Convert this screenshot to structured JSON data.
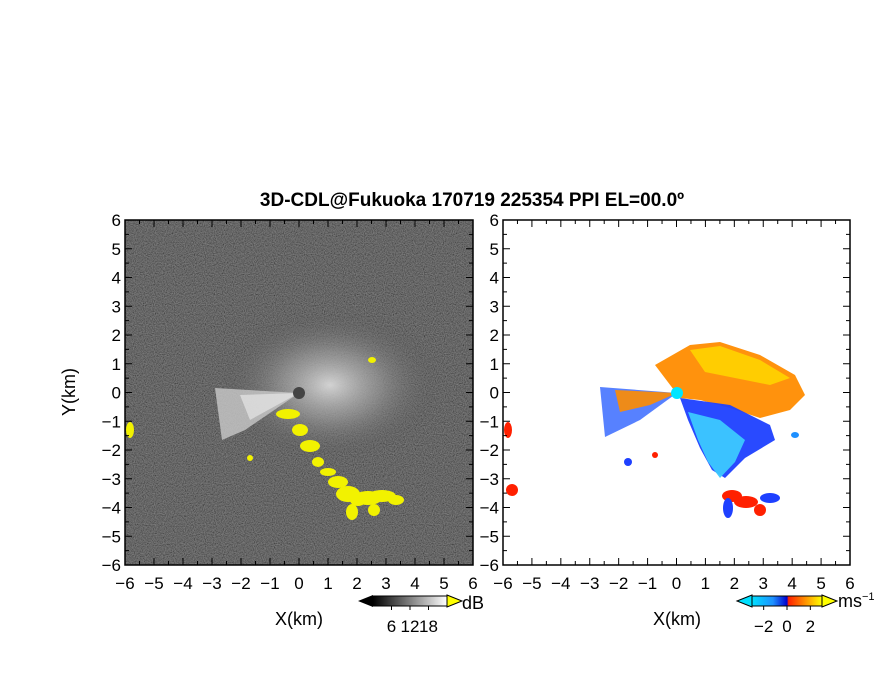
{
  "title": "3D-CDL@Fukuoka 170719 225354 PPI EL=00.0º",
  "chart_data": [
    {
      "type": "heatmap",
      "panel": "left",
      "quantity": "SNR (dB)",
      "xlabel": "X(km)",
      "ylabel": "Y(km)",
      "xlim": [
        -6,
        6
      ],
      "ylim": [
        -6,
        6
      ],
      "xticks": [
        -6,
        -5,
        -4,
        -3,
        -2,
        -1,
        0,
        1,
        2,
        3,
        4,
        5,
        6
      ],
      "yticks": [
        -6,
        -5,
        -4,
        -3,
        -2,
        -1,
        0,
        1,
        2,
        3,
        4,
        5,
        6
      ],
      "xtick_labels": [
        "−6",
        "−5",
        "−4",
        "−3",
        "−2",
        "−1",
        "0",
        "1",
        "2",
        "3",
        "4",
        "5",
        "6"
      ],
      "ytick_labels": [
        "−6",
        "−5",
        "−4",
        "−3",
        "−2",
        "−1",
        "0",
        "1",
        "2",
        "3",
        "4",
        "5",
        "6"
      ],
      "colorbar": {
        "unit": "dB",
        "ticks": [
          6,
          12,
          18
        ],
        "tick_labels": [
          "6",
          "12",
          "18"
        ],
        "range": [
          0,
          24
        ],
        "colormap": "grayscale"
      },
      "highlight_color": "#f2f200",
      "background_color": "#2a2a2a"
    },
    {
      "type": "heatmap",
      "panel": "right",
      "quantity": "Doppler velocity (m/s)",
      "xlabel": "X(km)",
      "ylabel": "",
      "xlim": [
        -6,
        6
      ],
      "ylim": [
        -6,
        6
      ],
      "xticks": [
        -6,
        -5,
        -4,
        -3,
        -2,
        -1,
        0,
        1,
        2,
        3,
        4,
        5,
        6
      ],
      "yticks": [
        -6,
        -5,
        -4,
        -3,
        -2,
        -1,
        0,
        1,
        2,
        3,
        4,
        5,
        6
      ],
      "xtick_labels": [
        "−6",
        "−5",
        "−4",
        "−3",
        "−2",
        "−1",
        "0",
        "1",
        "2",
        "3",
        "4",
        "5",
        "6"
      ],
      "ytick_labels": [
        "−6",
        "−5",
        "−4",
        "−3",
        "−2",
        "−1",
        "0",
        "1",
        "2",
        "3",
        "4",
        "5",
        "6"
      ],
      "colorbar": {
        "unit": "ms",
        "unit_exponent": "−1",
        "ticks": [
          -2,
          0,
          2
        ],
        "tick_labels": [
          "−2",
          "0",
          "2"
        ],
        "range": [
          -3,
          3
        ],
        "colormap": "cyan-blue-red-orange-yellow"
      },
      "station_color": "#00e5ff",
      "background_color": "#ffffff"
    }
  ]
}
